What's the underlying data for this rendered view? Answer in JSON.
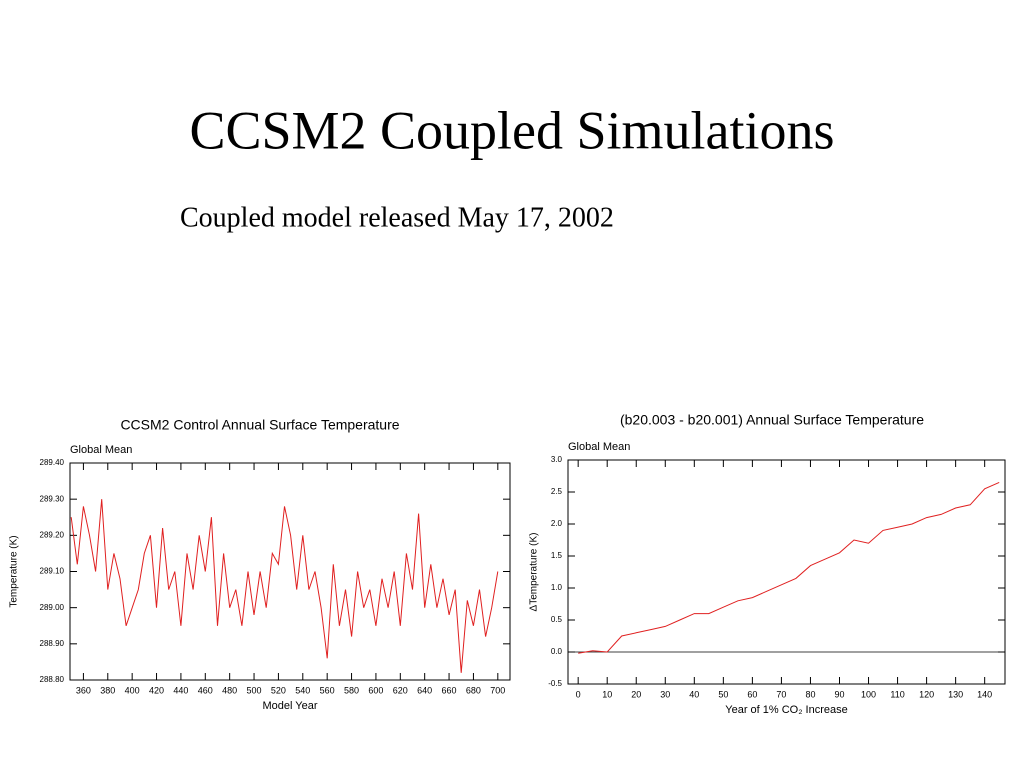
{
  "slide": {
    "title": "CCSM2 Coupled Simulations",
    "subtitle": "Coupled model released May 17, 2002"
  },
  "chart_data": [
    {
      "type": "line",
      "title": "CCSM2 Control Annual Surface Temperature",
      "subtitle": "Global Mean",
      "x_label": "Model Year",
      "y_label": "Temperature (K)",
      "color": "#e02020",
      "x": [
        350,
        355,
        360,
        365,
        370,
        375,
        380,
        385,
        390,
        395,
        400,
        405,
        410,
        415,
        420,
        425,
        430,
        435,
        440,
        445,
        450,
        455,
        460,
        465,
        470,
        475,
        480,
        485,
        490,
        495,
        500,
        505,
        510,
        515,
        520,
        525,
        530,
        535,
        540,
        545,
        550,
        555,
        560,
        565,
        570,
        575,
        580,
        585,
        590,
        595,
        600,
        605,
        610,
        615,
        620,
        625,
        630,
        635,
        640,
        645,
        650,
        655,
        660,
        665,
        670,
        675,
        680,
        685,
        690,
        695,
        700
      ],
      "values": [
        289.25,
        289.12,
        289.28,
        289.2,
        289.1,
        289.3,
        289.05,
        289.15,
        289.08,
        288.95,
        289.0,
        289.05,
        289.15,
        289.2,
        289.0,
        289.22,
        289.05,
        289.1,
        288.95,
        289.15,
        289.05,
        289.2,
        289.1,
        289.25,
        288.95,
        289.15,
        289.0,
        289.05,
        288.95,
        289.1,
        288.98,
        289.1,
        289.0,
        289.15,
        289.12,
        289.28,
        289.2,
        289.05,
        289.2,
        289.05,
        289.1,
        289.0,
        288.86,
        289.12,
        288.95,
        289.05,
        288.92,
        289.1,
        289.0,
        289.05,
        288.95,
        289.08,
        289.0,
        289.1,
        288.95,
        289.15,
        289.05,
        289.26,
        289.0,
        289.12,
        289.0,
        289.08,
        288.98,
        289.05,
        288.82,
        289.02,
        288.95,
        289.05,
        288.92,
        289.0,
        289.1
      ],
      "xlim": [
        349,
        710
      ],
      "xticks": [
        360,
        380,
        400,
        420,
        440,
        460,
        480,
        500,
        520,
        540,
        560,
        580,
        600,
        620,
        640,
        660,
        680,
        700
      ],
      "ylim": [
        288.8,
        289.4
      ],
      "yticks": [
        {
          "value": 288.8,
          "label": "288.80"
        },
        {
          "value": 288.9,
          "label": "288.90"
        },
        {
          "value": 289.0,
          "label": "289.00"
        },
        {
          "value": 289.1,
          "label": "289.10"
        },
        {
          "value": 289.2,
          "label": "289.20"
        },
        {
          "value": 289.3,
          "label": "289.30"
        },
        {
          "value": 289.4,
          "label": "289.40"
        }
      ]
    },
    {
      "type": "line",
      "title": "(b20.003 - b20.001) Annual Surface Temperature",
      "subtitle": "Global Mean",
      "x_label": "Year of 1% CO₂ Increase",
      "y_label": "ΔTemperature (K)",
      "color": "#e02020",
      "reference_line": 0,
      "x": [
        0,
        5,
        10,
        15,
        20,
        25,
        30,
        35,
        40,
        45,
        50,
        55,
        60,
        65,
        70,
        75,
        80,
        85,
        90,
        95,
        100,
        105,
        110,
        115,
        120,
        125,
        130,
        135,
        140,
        145
      ],
      "values": [
        -0.02,
        0.02,
        0.0,
        0.25,
        0.3,
        0.35,
        0.4,
        0.5,
        0.6,
        0.6,
        0.7,
        0.8,
        0.85,
        0.95,
        1.05,
        1.15,
        1.35,
        1.45,
        1.55,
        1.75,
        1.7,
        1.9,
        1.95,
        2.0,
        2.1,
        2.15,
        2.25,
        2.3,
        2.55,
        2.65
      ],
      "xlim": [
        -3.5,
        147
      ],
      "xticks": [
        0,
        10,
        20,
        30,
        40,
        50,
        60,
        70,
        80,
        90,
        100,
        110,
        120,
        130,
        140
      ],
      "ylim": [
        -0.5,
        3.0
      ],
      "yticks": [
        -0.5,
        {
          "value": 0.0,
          "label": "0.0"
        },
        0.5,
        {
          "value": 1.0,
          "label": "1.0"
        },
        1.5,
        {
          "value": 2.0,
          "label": "2.0"
        },
        2.5,
        {
          "value": 3.0,
          "label": "3.0"
        }
      ]
    }
  ]
}
